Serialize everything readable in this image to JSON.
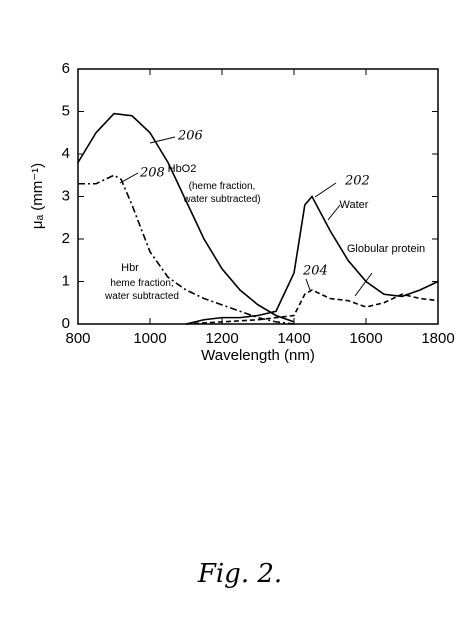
{
  "chart_data": {
    "type": "line",
    "x_label": "Wavelength (nm)",
    "y_label": "μₐ (mm⁻¹)",
    "xlim": [
      800,
      1800
    ],
    "xticks": [
      800,
      1000,
      1200,
      1400,
      1600,
      1800
    ],
    "ylim": [
      0,
      6
    ],
    "yticks": [
      0,
      1,
      2,
      3,
      4,
      5,
      6
    ],
    "series": [
      {
        "name": "HbO2",
        "note": "(heme fraction, water subtracted)",
        "ref": "206",
        "color": "#000",
        "style": "solid",
        "x": [
          800,
          850,
          900,
          950,
          1000,
          1050,
          1100,
          1150,
          1200,
          1250,
          1300,
          1350,
          1400
        ],
        "values": [
          3.8,
          4.5,
          4.95,
          4.9,
          4.5,
          3.8,
          2.9,
          2.0,
          1.3,
          0.8,
          0.45,
          0.2,
          0.05
        ]
      },
      {
        "name": "Hbr",
        "note": "heme fraction, water subtracted",
        "ref": "208",
        "color": "#000",
        "style": "dashdot",
        "x": [
          800,
          850,
          900,
          920,
          950,
          1000,
          1050,
          1100,
          1150,
          1200,
          1250,
          1300,
          1350,
          1400
        ],
        "values": [
          3.3,
          3.3,
          3.5,
          3.4,
          2.8,
          1.7,
          1.1,
          0.8,
          0.6,
          0.45,
          0.3,
          0.15,
          0.05,
          0
        ]
      },
      {
        "name": "Water",
        "ref": "202",
        "color": "#000",
        "style": "solid",
        "x": [
          1100,
          1150,
          1200,
          1250,
          1300,
          1350,
          1400,
          1430,
          1450,
          1500,
          1550,
          1600,
          1650,
          1700,
          1750,
          1800
        ],
        "values": [
          0,
          0.1,
          0.15,
          0.15,
          0.2,
          0.3,
          1.2,
          2.8,
          3.0,
          2.2,
          1.5,
          1.0,
          0.7,
          0.65,
          0.8,
          1.0
        ]
      },
      {
        "name": "Globular protein",
        "ref": "204",
        "color": "#000",
        "style": "dashed",
        "x": [
          1100,
          1200,
          1300,
          1400,
          1430,
          1450,
          1500,
          1550,
          1600,
          1650,
          1700,
          1750,
          1800
        ],
        "values": [
          0,
          0.05,
          0.1,
          0.2,
          0.7,
          0.8,
          0.6,
          0.55,
          0.4,
          0.5,
          0.7,
          0.6,
          0.55
        ]
      }
    ],
    "caption": "Fig. 2."
  }
}
